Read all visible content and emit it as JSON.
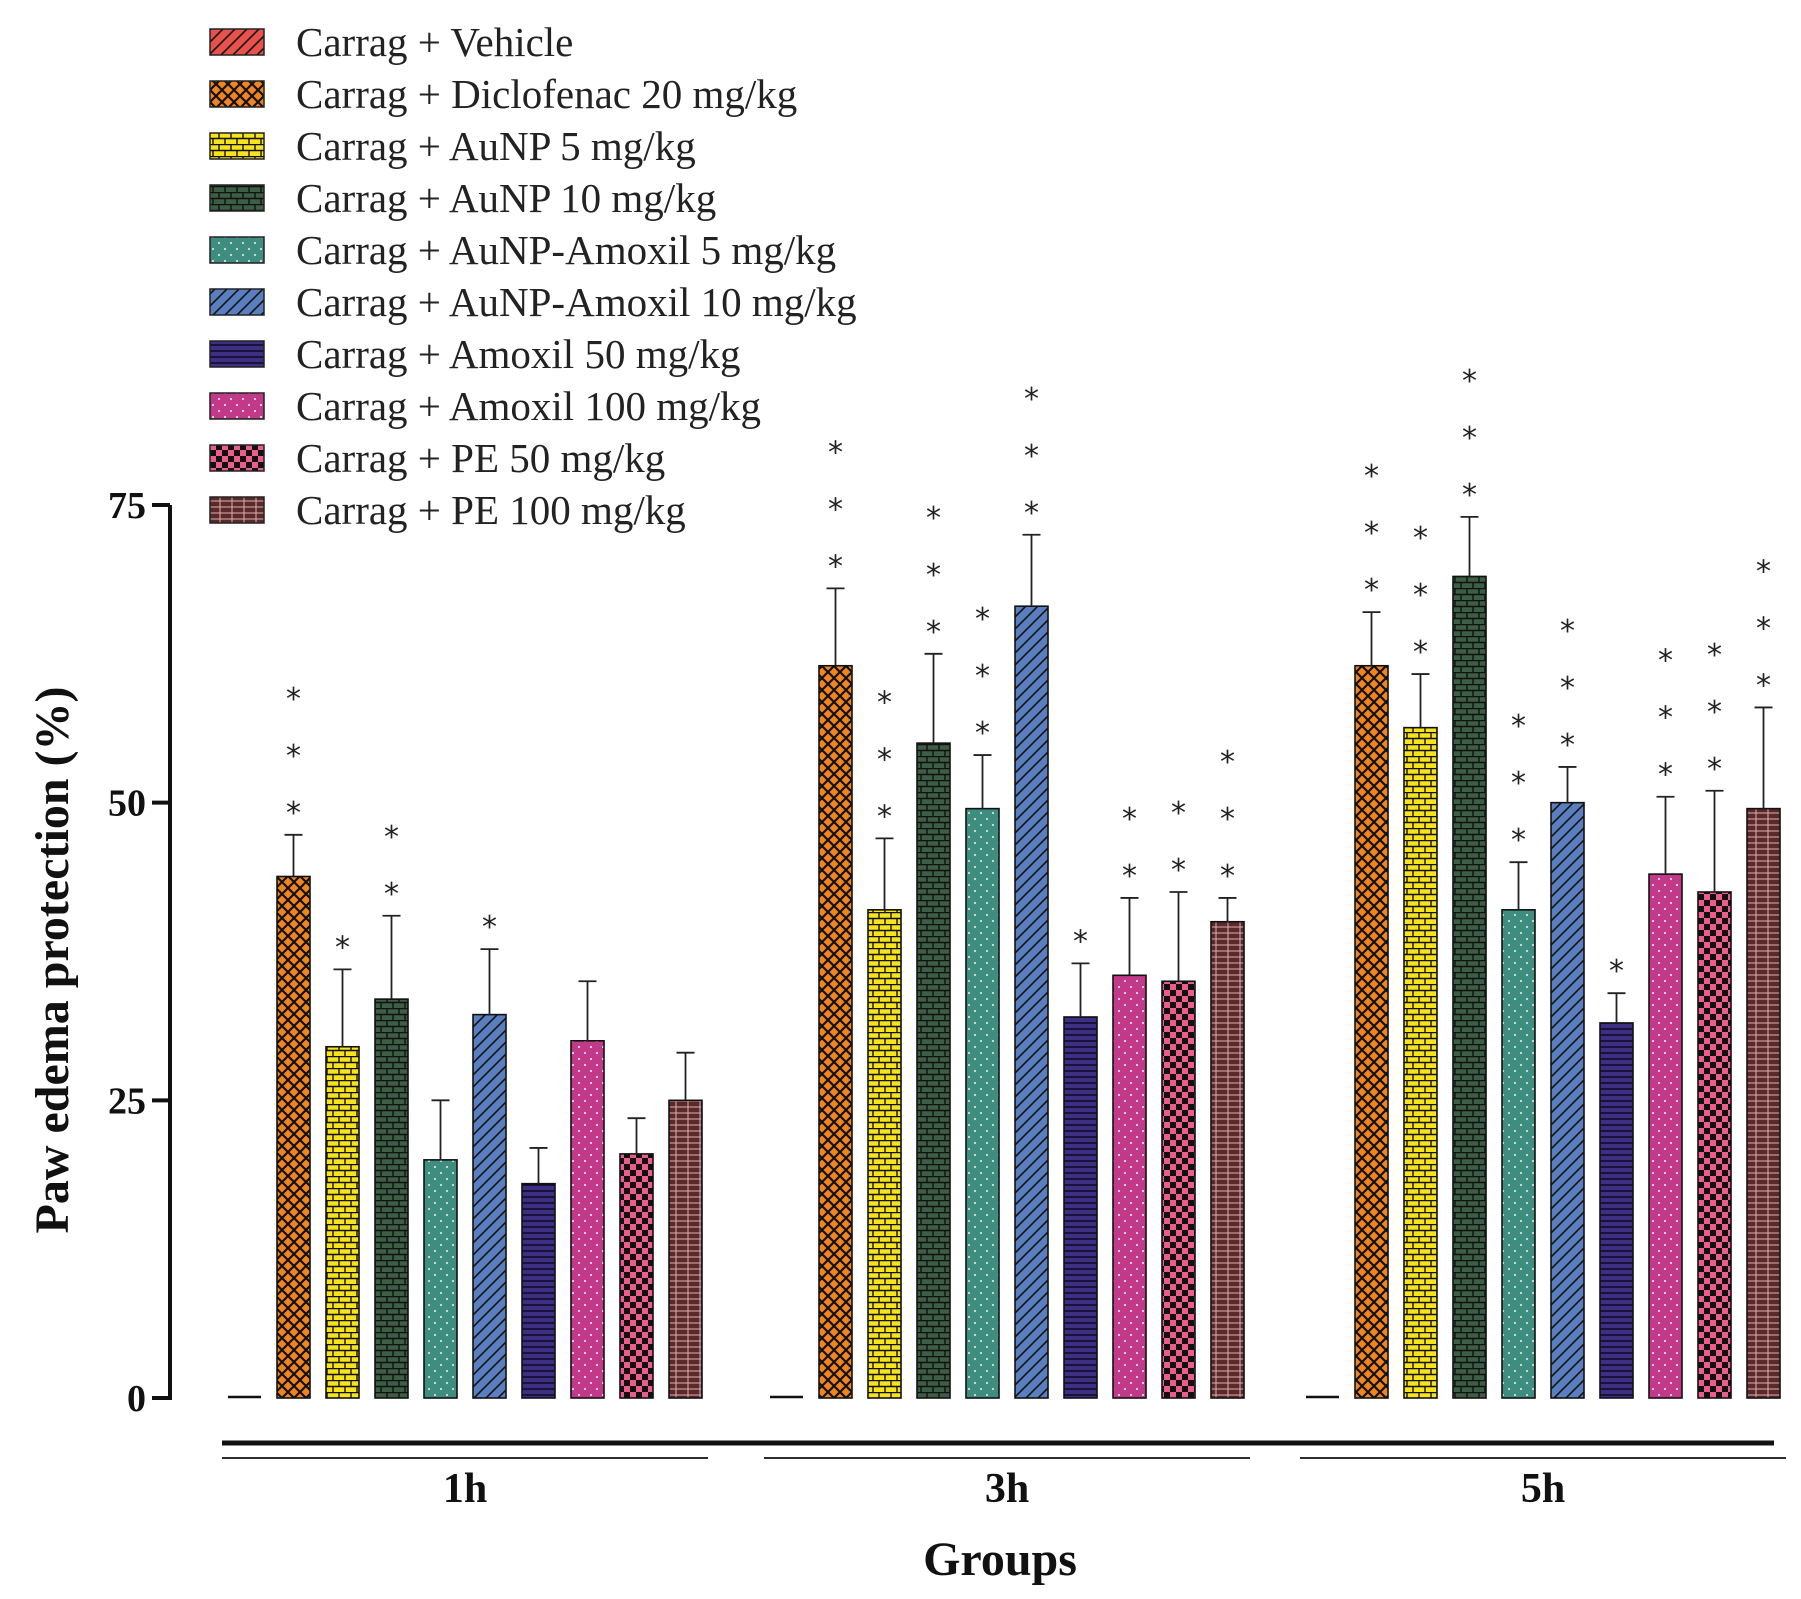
{
  "chart_data": {
    "type": "bar",
    "title": "",
    "xlabel": "Groups",
    "ylabel": "Paw edema protection (%)",
    "ylim": [
      0,
      75
    ],
    "yticks": [
      "0",
      "25",
      "50",
      "75"
    ],
    "categories": [
      "1h",
      "3h",
      "5h"
    ],
    "legend_position": "top-left",
    "series": [
      {
        "name": "Carrag + Vehicle",
        "color": "#e8524a",
        "pattern": "diag",
        "values": [
          0.2,
          0,
          0
        ],
        "errors": [
          0,
          0,
          0
        ],
        "significance": [
          "",
          "",
          ""
        ]
      },
      {
        "name": "Carrag + Diclofenac 20 mg/kg",
        "color": "#f2841e",
        "pattern": "cross",
        "values": [
          43.8,
          61.5,
          61.5
        ],
        "errors": [
          3.5,
          6.5,
          4.5
        ],
        "significance": [
          "***",
          "***",
          "***"
        ]
      },
      {
        "name": "Carrag + AuNP 5 mg/kg",
        "color": "#f7e31b",
        "pattern": "brick",
        "values": [
          29.5,
          41,
          56.3
        ],
        "errors": [
          6.5,
          6,
          4.5
        ],
        "significance": [
          "*",
          "***",
          "***"
        ]
      },
      {
        "name": "Carrag + AuNP 10 mg/kg",
        "color": "#3c5e45",
        "pattern": "brick",
        "values": [
          33.5,
          55,
          69
        ],
        "errors": [
          7,
          7.5,
          5
        ],
        "significance": [
          "**",
          "***",
          "***"
        ]
      },
      {
        "name": "Carrag + AuNP-Amoxil 5 mg/kg",
        "color": "#3e8e80",
        "pattern": "dots",
        "values": [
          20,
          49.5,
          41
        ],
        "errors": [
          5,
          4.5,
          4
        ],
        "significance": [
          "",
          "***",
          "***"
        ]
      },
      {
        "name": "Carrag + AuNP-Amoxil 10 mg/kg",
        "color": "#5a7fc0",
        "pattern": "diag",
        "values": [
          32.2,
          66.5,
          50
        ],
        "errors": [
          5.5,
          6,
          3
        ],
        "significance": [
          "*",
          "***",
          "***"
        ]
      },
      {
        "name": "Carrag + Amoxil 50 mg/kg",
        "color": "#3e2e84",
        "pattern": "hlines",
        "values": [
          18,
          32,
          31.5
        ],
        "errors": [
          3,
          4.5,
          2.5
        ],
        "significance": [
          "",
          "*",
          "*"
        ]
      },
      {
        "name": "Carrag + Amoxil 100 mg/kg",
        "color": "#c3398a",
        "pattern": "dots",
        "values": [
          30,
          35.5,
          44
        ],
        "errors": [
          5,
          6.5,
          6.5
        ],
        "significance": [
          "",
          "**",
          "***"
        ]
      },
      {
        "name": "Carrag + PE 50 mg/kg",
        "color": "#ee5c8c",
        "pattern": "checker",
        "values": [
          20.5,
          35,
          42.5
        ],
        "errors": [
          3,
          7.5,
          8.5
        ],
        "significance": [
          "",
          "**",
          "***"
        ]
      },
      {
        "name": "Carrag + PE 100 mg/kg",
        "color": "#5a2a2a",
        "pattern": "grid",
        "values": [
          25,
          40,
          49.5
        ],
        "errors": [
          4,
          2,
          8.5
        ],
        "significance": [
          "",
          "***",
          "***"
        ]
      }
    ]
  }
}
